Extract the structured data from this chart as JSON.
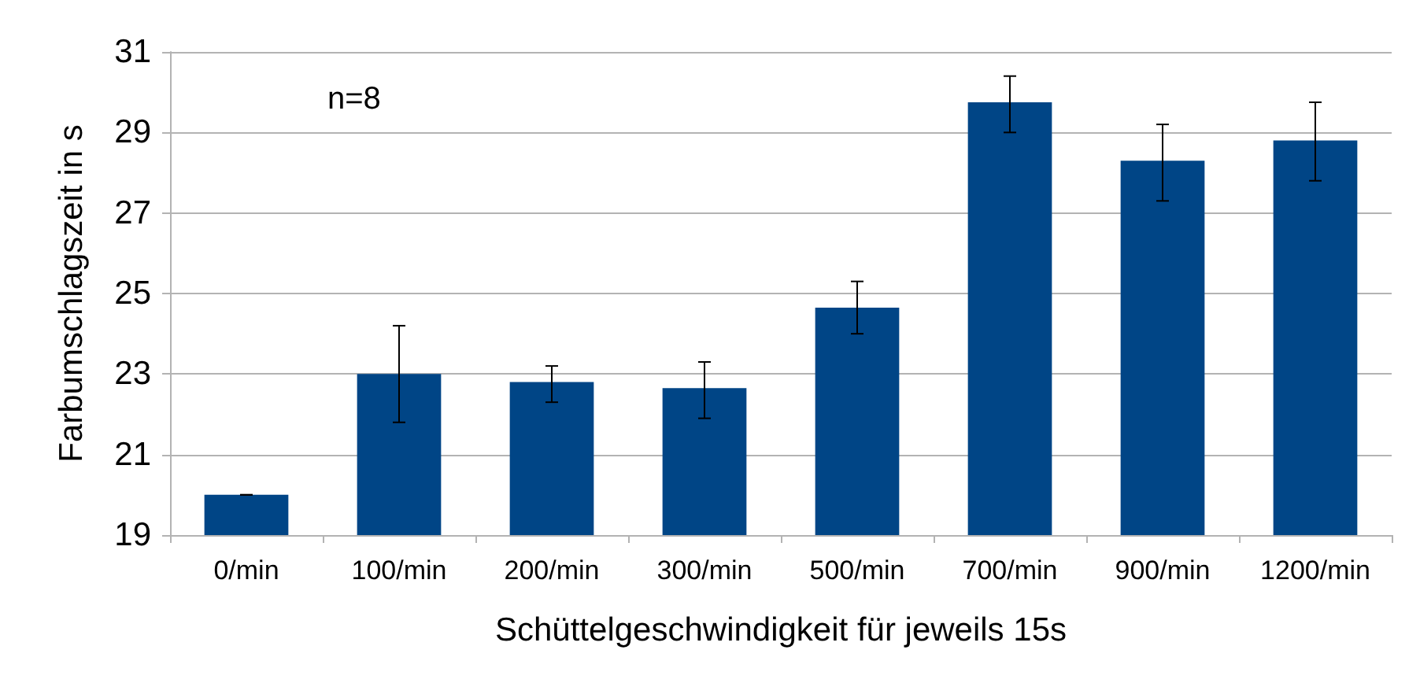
{
  "chart_data": {
    "type": "bar",
    "xlabel": "Schüttelgeschwindigkeit für jeweils 15s",
    "ylabel": "Farbumschlagszeit in s",
    "categories": [
      "0/min",
      "100/min",
      "200/min",
      "300/min",
      "500/min",
      "700/min",
      "900/min",
      "1200/min"
    ],
    "values": [
      20.0,
      23.0,
      22.8,
      22.65,
      24.65,
      29.75,
      28.3,
      28.8
    ],
    "errors": [
      [
        20.0,
        20.0
      ],
      [
        21.8,
        24.2
      ],
      [
        22.3,
        23.2
      ],
      [
        21.9,
        23.3
      ],
      [
        24.0,
        25.3
      ],
      [
        29.0,
        30.4
      ],
      [
        27.3,
        29.2
      ],
      [
        27.8,
        29.75
      ]
    ],
    "color": "#004586",
    "ylim": [
      19,
      31
    ],
    "yticks": [
      19,
      21,
      23,
      25,
      27,
      29,
      31
    ],
    "grid": "y",
    "annotations": [
      "n=8"
    ]
  }
}
